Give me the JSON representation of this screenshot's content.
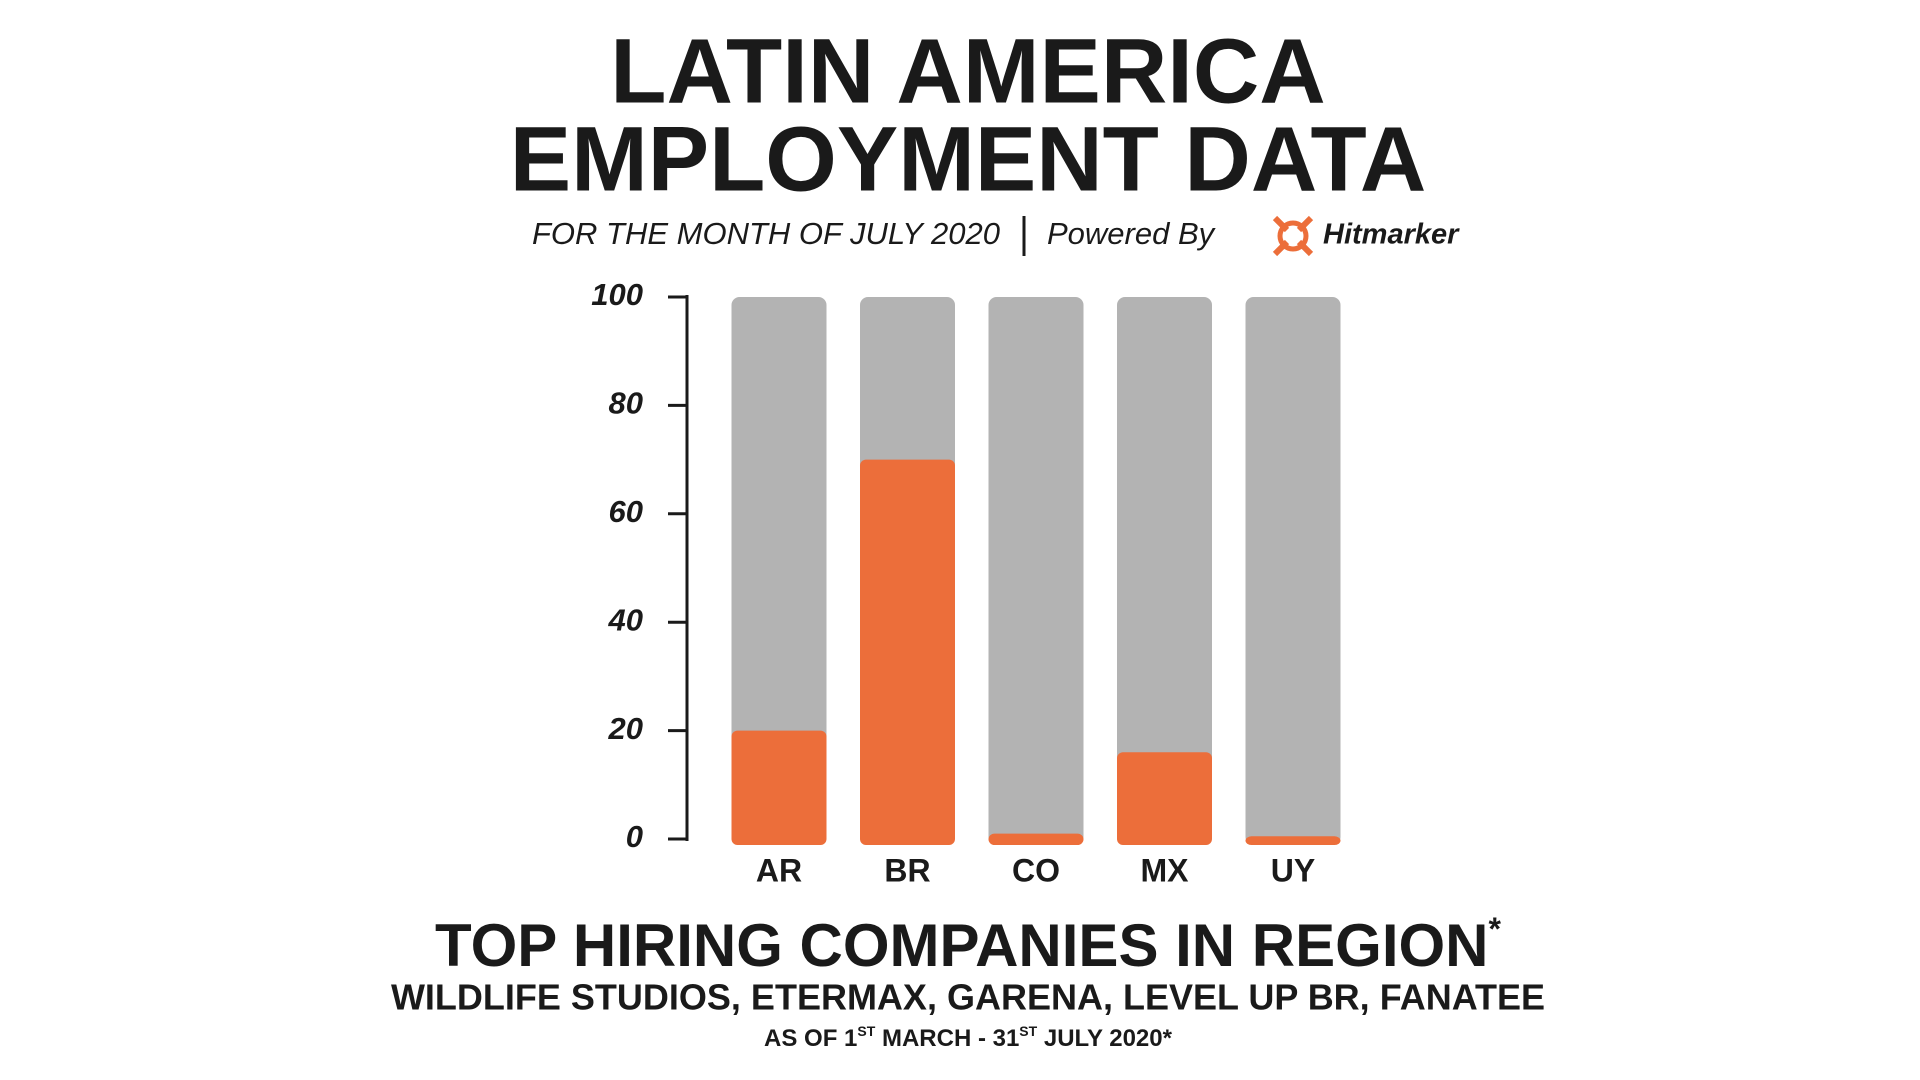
{
  "chart_data": {
    "type": "bar",
    "title": [
      "LATIN AMERICA",
      "EMPLOYMENT DATA"
    ],
    "subtitle": "FOR THE MONTH OF JULY 2020",
    "powered_by": "Powered By",
    "brand": "Hitmarker",
    "categories": [
      "AR",
      "BR",
      "CO",
      "MX",
      "UY"
    ],
    "values": [
      20,
      70,
      1,
      16,
      0.5
    ],
    "color": "#ec6e3a",
    "track_color": "#b3b3b3",
    "ylim": [
      0,
      100
    ],
    "yticks": [
      0,
      20,
      40,
      60,
      80,
      100
    ]
  },
  "footer": {
    "heading": "TOP HIRING COMPANIES IN REGION",
    "heading_mark": "*",
    "companies": "WILDLIFE STUDIOS, ETERMAX, GARENA, LEVEL UP BR, FANATEE",
    "date_parts": [
      "AS OF 1",
      "ST",
      " MARCH - 31",
      "ST",
      " JULY 2020*"
    ]
  }
}
